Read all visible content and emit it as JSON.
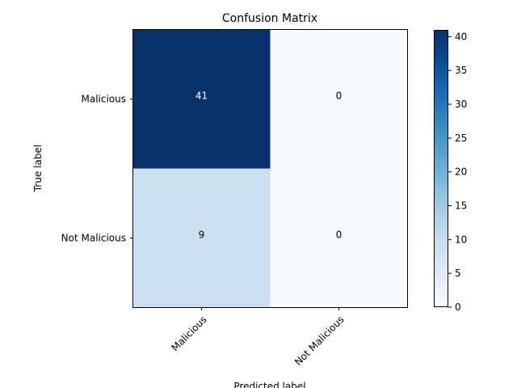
{
  "chart_data": {
    "type": "heatmap",
    "title": "Confusion Matrix",
    "xlabel": "Predicted label",
    "ylabel": "True label",
    "x_categories": [
      "Malicious",
      "Not Malicious"
    ],
    "y_categories": [
      "Malicious",
      "Not Malicious"
    ],
    "values": [
      [
        41,
        0
      ],
      [
        9,
        0
      ]
    ],
    "colormap": "Blues",
    "color_range": [
      0,
      41
    ],
    "colorbar_ticks": [
      0,
      5,
      10,
      15,
      20,
      25,
      30,
      35,
      40
    ],
    "colors": {
      "low": "#f7fbff",
      "high": "#08306b"
    },
    "grid": false,
    "colorbar_position": "right"
  }
}
